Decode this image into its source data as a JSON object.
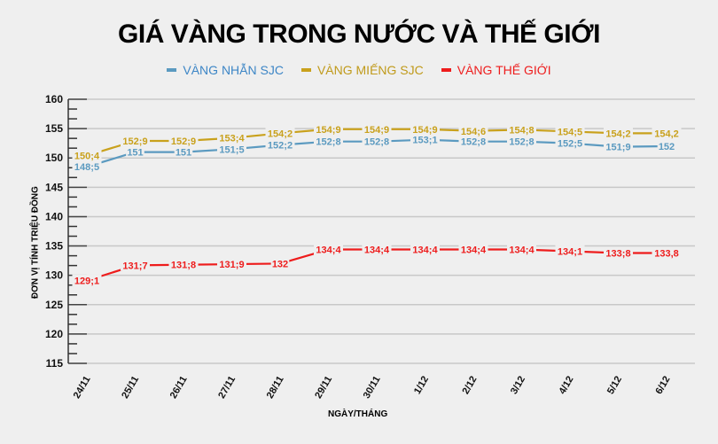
{
  "title": "GIÁ VÀNG TRONG NƯỚC VÀ THẾ GIỚI",
  "legend": [
    {
      "label": "VÀNG NHẪN SJC",
      "color": "#5b9ac0"
    },
    {
      "label": "VÀNG MIẾNG SJC",
      "color": "#c9a11c"
    },
    {
      "label": "VÀNG THẾ GIỚI",
      "color": "#ee1c1c"
    }
  ],
  "axes": {
    "ylabel": "ĐƠN VỊ TÍNH TRIỆU ĐỒNG",
    "xlabel": "NGÀY/THÁNG"
  },
  "chart_data": {
    "type": "line",
    "title": "GIÁ VÀNG TRONG NƯỚC VÀ THẾ GIỚI",
    "xlabel": "NGÀY/THÁNG",
    "ylabel": "ĐƠN VỊ TÍNH TRIỆU ĐỒNG",
    "ylim": [
      115,
      160
    ],
    "yticks": [
      115,
      120,
      125,
      130,
      135,
      140,
      145,
      150,
      155,
      160
    ],
    "grid": true,
    "legend_position": "top",
    "categories": [
      "24/11",
      "25/11",
      "26/11",
      "27/11",
      "28/11",
      "29/11",
      "30/11",
      "1/12",
      "2/12",
      "3/12",
      "4/12",
      "5/12",
      "6/12"
    ],
    "series": [
      {
        "name": "VÀNG NHẪN SJC",
        "color": "#5b9ac0",
        "values": [
          148.5,
          151,
          151,
          151.5,
          152.2,
          152.8,
          152.8,
          153.1,
          152.8,
          152.8,
          152.5,
          151.9,
          152
        ],
        "labels": [
          "148;5",
          "151",
          "151",
          "151;5",
          "152;2",
          "152;8",
          "152;8",
          "153;1",
          "152;8",
          "152;8",
          "152;5",
          "151;9",
          "152"
        ]
      },
      {
        "name": "VÀNG MIẾNG SJC",
        "color": "#c9a11c",
        "values": [
          150.4,
          152.9,
          152.9,
          153.4,
          154.2,
          154.9,
          154.9,
          154.9,
          154.6,
          154.8,
          154.5,
          154.2,
          154.2
        ],
        "labels": [
          "150;4",
          "152;9",
          "152;9",
          "153;4",
          "154;2",
          "154;9",
          "154;9",
          "154;9",
          "154;6",
          "154;8",
          "154;5",
          "154;2",
          "154,2"
        ]
      },
      {
        "name": "VÀNG THẾ GIỚI",
        "color": "#ee1c1c",
        "values": [
          129.1,
          131.7,
          131.8,
          131.9,
          132,
          134.4,
          134.4,
          134.4,
          134.4,
          134.4,
          134.1,
          133.8,
          133.8
        ],
        "labels": [
          "129;1",
          "131;7",
          "131;8",
          "131;9",
          "132",
          "134;4",
          "134;4",
          "134;4",
          "134;4",
          "134;4",
          "134;1",
          "133;8",
          "133,8"
        ]
      }
    ]
  }
}
